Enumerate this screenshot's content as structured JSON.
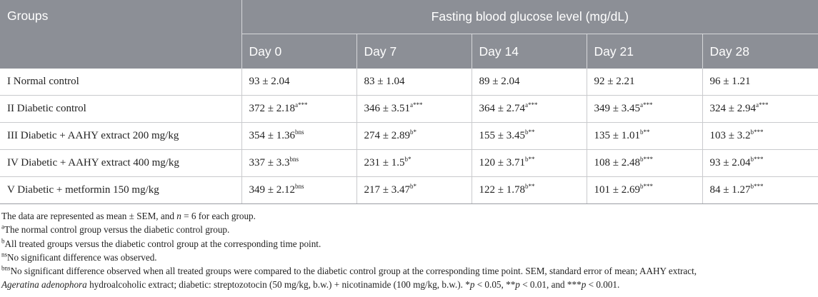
{
  "table": {
    "group_header": "Groups",
    "span_header": "Fasting blood glucose level (mg/dL)",
    "days": [
      "Day 0",
      "Day 7",
      "Day 14",
      "Day 21",
      "Day 28"
    ],
    "rows": [
      {
        "group": "I Normal control",
        "cells": [
          {
            "v": "93 ± 2.04",
            "s": ""
          },
          {
            "v": "83 ± 1.04",
            "s": ""
          },
          {
            "v": "89 ± 2.04",
            "s": ""
          },
          {
            "v": "92 ± 2.21",
            "s": ""
          },
          {
            "v": "96 ± 1.21",
            "s": ""
          }
        ]
      },
      {
        "group": "II Diabetic control",
        "cells": [
          {
            "v": "372 ± 2.18",
            "s": "a***"
          },
          {
            "v": "346 ± 3.51",
            "s": "a***"
          },
          {
            "v": "364 ± 2.74",
            "s": "a***"
          },
          {
            "v": "349 ± 3.45",
            "s": "a***"
          },
          {
            "v": "324 ± 2.94",
            "s": "a***"
          }
        ]
      },
      {
        "group": "III Diabetic + AAHY extract 200 mg/kg",
        "cells": [
          {
            "v": "354 ± 1.36",
            "s": "bns"
          },
          {
            "v": "274 ± 2.89",
            "s": "b*"
          },
          {
            "v": "155 ± 3.45",
            "s": "b**"
          },
          {
            "v": "135 ± 1.01",
            "s": "b**"
          },
          {
            "v": "103 ± 3.2",
            "s": "b***"
          }
        ]
      },
      {
        "group": "IV Diabetic + AAHY extract 400 mg/kg",
        "cells": [
          {
            "v": "337 ± 3.3",
            "s": "bns"
          },
          {
            "v": "231 ± 1.5",
            "s": "b*"
          },
          {
            "v": "120 ± 3.71",
            "s": "b**"
          },
          {
            "v": "108 ± 2.48",
            "s": "b***"
          },
          {
            "v": "93 ± 2.04",
            "s": "b***"
          }
        ]
      },
      {
        "group": "V Diabetic + metformin 150 mg/kg",
        "cells": [
          {
            "v": "349 ± 2.12",
            "s": "bns"
          },
          {
            "v": "217 ± 3.47",
            "s": "b*"
          },
          {
            "v": "122 ± 1.78",
            "s": "b**"
          },
          {
            "v": "101 ± 2.69",
            "s": "b***"
          },
          {
            "v": "84 ± 1.27",
            "s": "b***"
          }
        ]
      }
    ]
  },
  "notes": {
    "line1_pre": "The data are represented as mean ± SEM, and ",
    "line1_n": "n",
    "line1_post": " = 6 for each group.",
    "a_mark": "a",
    "a_text": "The normal control group versus the diabetic control group.",
    "b_mark": "b",
    "b_text": "All treated groups versus the diabetic control group at the corresponding time point.",
    "ns_mark": "ns",
    "ns_text": "No significant difference was observed.",
    "bns_mark": "bns",
    "bns_text": "No significant difference observed when all treated groups were compared to the diabetic control group at the corresponding time point. SEM, standard error of mean; AAHY extract,",
    "species": "Ageratina adenophora",
    "last_text": " hydroalcoholic extract; diabetic: streptozotocin (50 mg/kg, b.w.) + nicotinamide (100 mg/kg, b.w.). *",
    "p1": "p",
    "p1_text": " < 0.05, **",
    "p2": "p",
    "p2_text": " < 0.01, and ***",
    "p3": "p",
    "p3_text": " < 0.001."
  }
}
